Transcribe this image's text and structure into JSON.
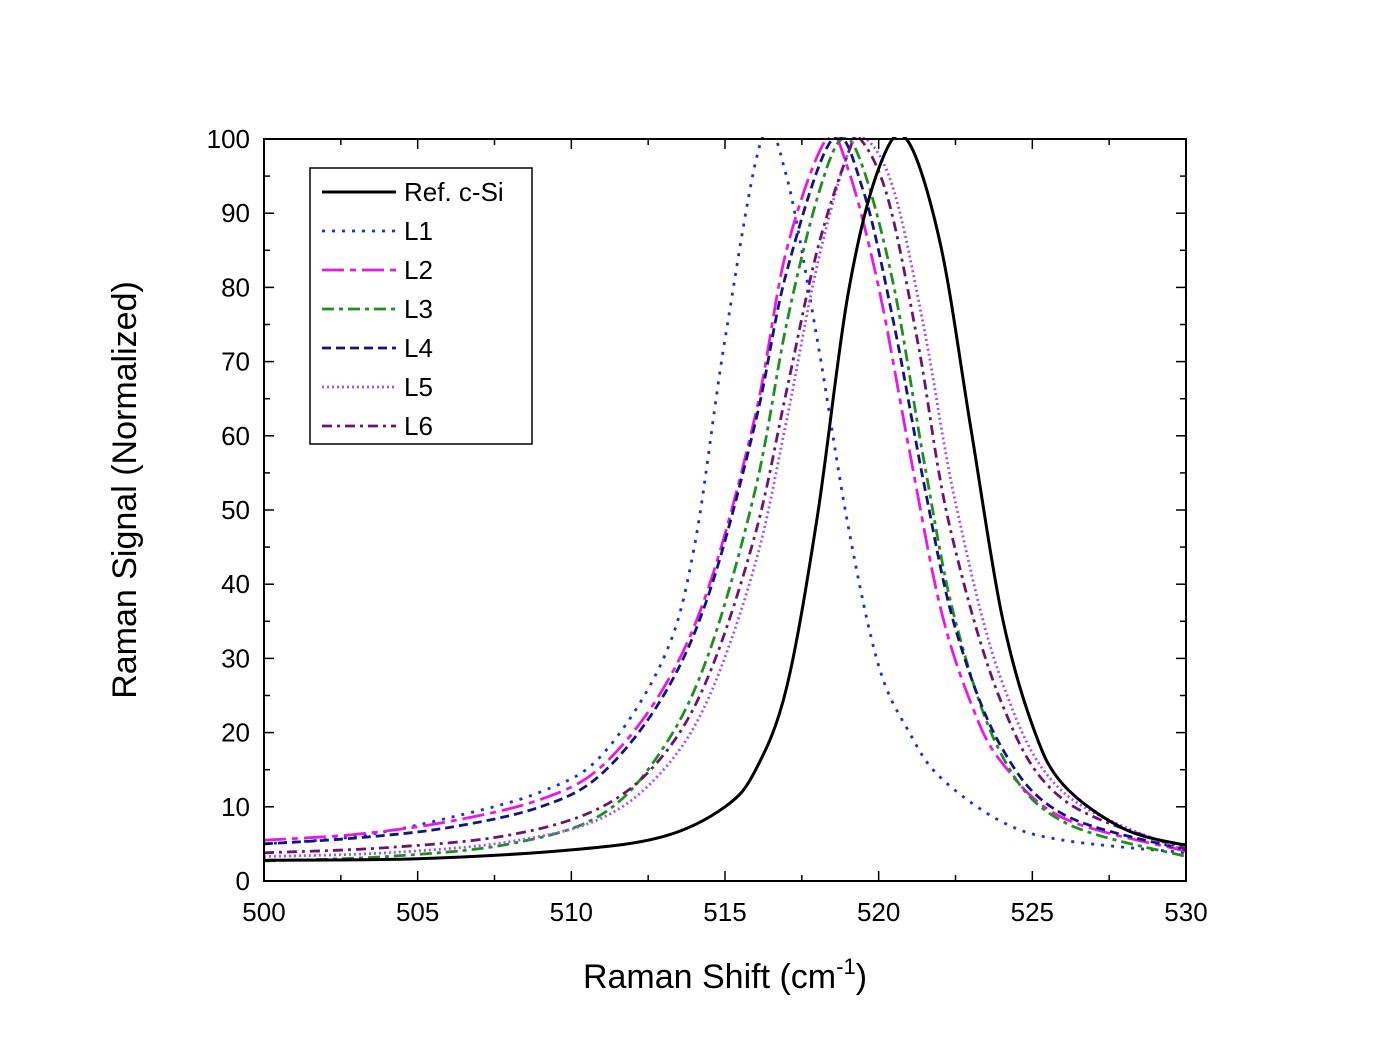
{
  "chart_data": {
    "type": "line",
    "xlabel": "Raman Shift (cm",
    "xlabel_sup": "-1",
    "xlabel_end": ")",
    "ylabel": "Raman Signal (Normalized)",
    "xlim": [
      500,
      530
    ],
    "ylim": [
      0,
      100
    ],
    "xticks": [
      500,
      505,
      510,
      515,
      520,
      525,
      530
    ],
    "yticks": [
      0,
      10,
      20,
      30,
      40,
      50,
      60,
      70,
      80,
      90,
      100
    ],
    "grid": false,
    "legend_position": "top-left",
    "series": [
      {
        "name": "Ref. c-Si",
        "color": "#000000",
        "dash": "solid",
        "peak": 520.9,
        "width_left": 2.9,
        "width_right": 3.0,
        "base": 2.4,
        "tail_left": 0.0,
        "x": [
          500,
          505,
          510,
          513,
          515,
          516,
          517,
          518,
          519,
          520,
          520.9,
          522,
          523,
          524,
          525,
          526,
          528,
          530
        ],
        "y": [
          2.8,
          3.0,
          4.2,
          6.0,
          10.0,
          15.0,
          26.0,
          49.0,
          79.0,
          96.0,
          100.0,
          86.0,
          61.0,
          36.0,
          21.0,
          13.0,
          7.0,
          4.8
        ]
      },
      {
        "name": "L1",
        "color": "#1a2fd6",
        "dash": "dot",
        "x": [
          500,
          503,
          506,
          509,
          511,
          513,
          514,
          515,
          516.2,
          517,
          518,
          519,
          520,
          521,
          522,
          524,
          526,
          530
        ],
        "y": [
          5.0,
          6.0,
          8.5,
          12.0,
          17.0,
          30.0,
          45.0,
          73.0,
          100.0,
          95.0,
          73.0,
          48.0,
          29.0,
          20.0,
          14.0,
          8.0,
          5.5,
          3.8
        ]
      },
      {
        "name": "L2",
        "color": "#e619e6",
        "dash": "longdash",
        "x": [
          500,
          503,
          506,
          509,
          511,
          513,
          514.5,
          516,
          517,
          518.3,
          519,
          520,
          521,
          522,
          523,
          524,
          526,
          530
        ],
        "y": [
          5.5,
          6.3,
          8.0,
          11.0,
          15.5,
          26.0,
          40.0,
          63.0,
          85.0,
          100.0,
          96.0,
          80.0,
          58.0,
          37.0,
          24.0,
          16.0,
          8.5,
          4.0
        ]
      },
      {
        "name": "L3",
        "color": "#1f8f1f",
        "dash": "dashdot",
        "x": [
          500,
          504,
          508,
          511,
          513,
          514.5,
          516,
          517,
          518,
          518.8,
          519.5,
          520.5,
          521.5,
          522.5,
          524,
          526,
          530
        ],
        "y": [
          2.7,
          3.3,
          5.0,
          9.0,
          18.0,
          31.0,
          53.0,
          75.0,
          92.0,
          100.0,
          96.0,
          80.0,
          56.0,
          35.0,
          17.0,
          8.0,
          3.3
        ]
      },
      {
        "name": "L4",
        "color": "#14157a",
        "dash": "dash",
        "x": [
          500,
          503,
          506,
          509,
          511,
          513,
          514.5,
          516,
          517,
          518.5,
          519.5,
          520.5,
          521.5,
          522.5,
          524,
          526,
          530
        ],
        "y": [
          5.0,
          5.8,
          7.2,
          10.0,
          14.5,
          25.0,
          39.0,
          62.0,
          82.0,
          100.0,
          93.0,
          75.0,
          53.0,
          34.0,
          18.0,
          9.0,
          4.2
        ]
      },
      {
        "name": "L5",
        "color": "#a64dff",
        "dash": "densedot",
        "x": [
          500,
          504,
          508,
          511,
          513,
          514.5,
          516,
          517,
          518,
          519,
          519.6,
          520.5,
          521.5,
          522.5,
          524,
          526,
          530
        ],
        "y": [
          3.3,
          3.8,
          5.3,
          8.5,
          15.0,
          25.0,
          43.0,
          62.0,
          83.0,
          98.0,
          100.0,
          93.0,
          74.0,
          51.0,
          27.0,
          12.0,
          4.0
        ]
      },
      {
        "name": "L6",
        "color": "#6b1470",
        "dash": "dashdot2",
        "x": [
          500,
          504,
          508,
          511,
          513,
          514.5,
          516,
          517,
          518,
          519,
          519.4,
          520.3,
          521.3,
          522.3,
          524,
          526,
          530
        ],
        "y": [
          3.8,
          4.5,
          6.2,
          10.0,
          17.0,
          28.0,
          47.0,
          66.0,
          85.0,
          98.0,
          100.0,
          92.0,
          72.0,
          48.0,
          24.0,
          11.0,
          4.3
        ]
      }
    ]
  }
}
